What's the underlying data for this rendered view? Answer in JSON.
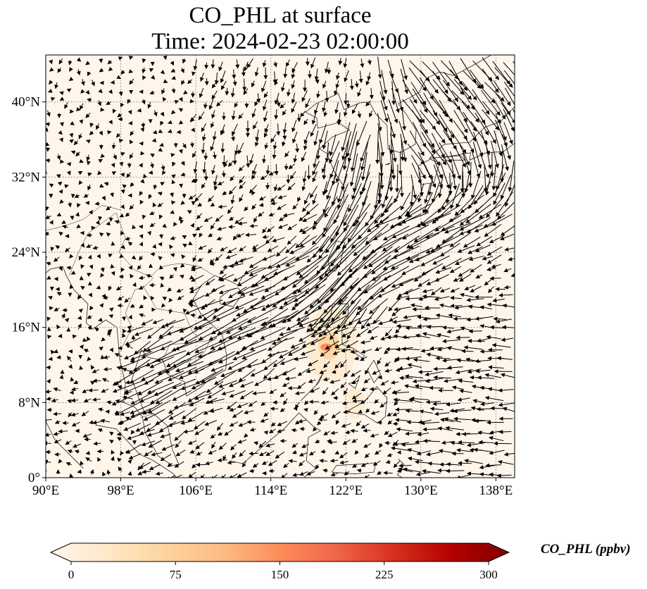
{
  "title": {
    "line1": "CO_PHL at surface",
    "line2": "Time: 2024-02-23 02:00:00"
  },
  "map": {
    "lon_ticks": [
      "90°E",
      "98°E",
      "106°E",
      "114°E",
      "122°E",
      "130°E",
      "138°E"
    ],
    "lat_ticks": [
      "0°",
      "8°N",
      "16°N",
      "24°N",
      "32°N",
      "40°N"
    ],
    "lon_range": [
      90,
      140
    ],
    "lat_range": [
      0,
      45
    ],
    "gridlines": "dotted",
    "background_color": "#fff5eb",
    "plume": {
      "description_location": "central Luzon, Philippines",
      "lon": 120.5,
      "lat": 14.5,
      "max_value": 120
    }
  },
  "colorbar": {
    "label": "CO_PHL (ppbv)",
    "ticks": [
      "0",
      "75",
      "150",
      "225",
      "300"
    ],
    "range": [
      0,
      300
    ],
    "colormap": "OrRd",
    "colors": [
      "#fff7ec",
      "#fee8c8",
      "#fdd49e",
      "#fdbb84",
      "#fc8d59",
      "#ef6548",
      "#d7301f",
      "#b30000",
      "#7f0000"
    ],
    "extend": "both"
  }
}
